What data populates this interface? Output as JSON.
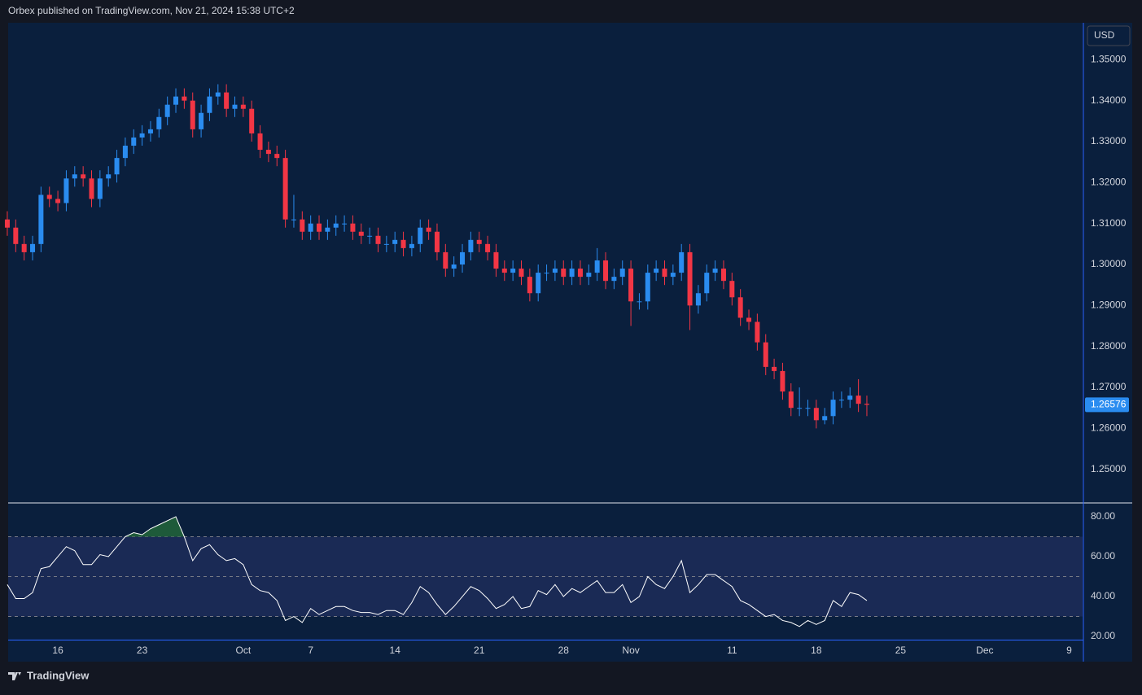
{
  "header": {
    "title": "Orbex published on TradingView.com, Nov 21, 2024 15:38 UTC+2"
  },
  "footer": {
    "brand": "TradingView"
  },
  "chart_data": [
    {
      "type": "candlestick",
      "currency": "USD",
      "up_color": "#2a8cf0",
      "down_color": "#f23645",
      "xlim": [
        -2.95,
        60.8
      ],
      "ylim": [
        1.242,
        1.359
      ],
      "xticks": [
        {
          "value": 0,
          "label": "16"
        },
        {
          "value": 5,
          "label": "23"
        },
        {
          "value": 11,
          "label": "Oct"
        },
        {
          "value": 15,
          "label": "7"
        },
        {
          "value": 20,
          "label": "14"
        },
        {
          "value": 25,
          "label": "21"
        },
        {
          "value": 30,
          "label": "28"
        },
        {
          "value": 34,
          "label": "Nov"
        },
        {
          "value": 40,
          "label": "11"
        },
        {
          "value": 45,
          "label": "18"
        },
        {
          "value": 50,
          "label": "25"
        },
        {
          "value": 55,
          "label": "Dec"
        },
        {
          "value": 60,
          "label": "9"
        }
      ],
      "yticks": [
        {
          "value": 1.35,
          "label": "1.35000"
        },
        {
          "value": 1.34,
          "label": "1.34000"
        },
        {
          "value": 1.33,
          "label": "1.33000"
        },
        {
          "value": 1.32,
          "label": "1.32000"
        },
        {
          "value": 1.31,
          "label": "1.31000"
        },
        {
          "value": 1.3,
          "label": "1.30000"
        },
        {
          "value": 1.29,
          "label": "1.29000"
        },
        {
          "value": 1.28,
          "label": "1.28000"
        },
        {
          "value": 1.27,
          "label": "1.27000"
        },
        {
          "value": 1.26,
          "label": "1.26000"
        },
        {
          "value": 1.25,
          "label": "1.25000"
        }
      ],
      "x": [
        -3,
        -2.5,
        -2,
        -1.5,
        -1,
        -0.5,
        0,
        0.5,
        1,
        1.5,
        2,
        2.5,
        3,
        3.5,
        4,
        4.5,
        5,
        5.5,
        6,
        6.5,
        7,
        7.5,
        8,
        8.5,
        9,
        9.5,
        10,
        10.5,
        11,
        11.5,
        12,
        12.5,
        13,
        13.5,
        14,
        14.5,
        15,
        15.5,
        16,
        16.5,
        17,
        17.5,
        18,
        18.5,
        19,
        19.5,
        20,
        20.5,
        21,
        21.5,
        22,
        22.5,
        23,
        23.5,
        24,
        24.5,
        25,
        25.5,
        26,
        26.5,
        27,
        27.5,
        28,
        28.5,
        29,
        29.5,
        30,
        30.5,
        31,
        31.5,
        32,
        32.5,
        33,
        33.5,
        34,
        34.5,
        35,
        35.5,
        36,
        36.5,
        37,
        37.5,
        38,
        38.5,
        39,
        39.5,
        40,
        40.5,
        41,
        41.5,
        42,
        42.5,
        43,
        43.5,
        44,
        44.5,
        45,
        45.5,
        46,
        46.5,
        47,
        47.5,
        48
      ],
      "open": [
        1.311,
        1.309,
        1.305,
        1.303,
        1.305,
        1.317,
        1.316,
        1.315,
        1.321,
        1.322,
        1.321,
        1.316,
        1.321,
        1.322,
        1.326,
        1.329,
        1.331,
        1.332,
        1.333,
        1.336,
        1.339,
        1.341,
        1.34,
        1.333,
        1.337,
        1.341,
        1.342,
        1.338,
        1.339,
        1.338,
        1.332,
        1.328,
        1.327,
        1.326,
        1.311,
        1.311,
        1.308,
        1.31,
        1.308,
        1.309,
        1.31,
        1.31,
        1.308,
        1.307,
        1.307,
        1.305,
        1.305,
        1.306,
        1.304,
        1.305,
        1.309,
        1.308,
        1.303,
        1.299,
        1.3,
        1.303,
        1.306,
        1.305,
        1.303,
        1.299,
        1.298,
        1.299,
        1.297,
        1.293,
        1.298,
        1.298,
        1.299,
        1.297,
        1.299,
        1.297,
        1.298,
        1.301,
        1.296,
        1.297,
        1.299,
        1.291,
        1.291,
        1.298,
        1.299,
        1.297,
        1.298,
        1.303,
        1.29,
        1.293,
        1.298,
        1.299,
        1.296,
        1.292,
        1.287,
        1.286,
        1.281,
        1.275,
        1.274,
        1.269,
        1.265,
        1.265,
        1.265,
        1.262,
        1.263,
        1.267,
        1.267,
        1.268,
        1.266
      ],
      "high": [
        1.313,
        1.311,
        1.307,
        1.307,
        1.319,
        1.319,
        1.318,
        1.323,
        1.324,
        1.324,
        1.323,
        1.323,
        1.324,
        1.328,
        1.331,
        1.333,
        1.334,
        1.335,
        1.338,
        1.341,
        1.343,
        1.343,
        1.342,
        1.339,
        1.343,
        1.344,
        1.344,
        1.341,
        1.341,
        1.34,
        1.334,
        1.33,
        1.329,
        1.328,
        1.317,
        1.313,
        1.312,
        1.312,
        1.311,
        1.312,
        1.312,
        1.312,
        1.31,
        1.309,
        1.309,
        1.307,
        1.308,
        1.308,
        1.307,
        1.311,
        1.311,
        1.31,
        1.305,
        1.302,
        1.305,
        1.308,
        1.308,
        1.307,
        1.305,
        1.301,
        1.301,
        1.301,
        1.299,
        1.3,
        1.3,
        1.301,
        1.301,
        1.301,
        1.301,
        1.3,
        1.304,
        1.303,
        1.299,
        1.301,
        1.301,
        1.293,
        1.3,
        1.301,
        1.301,
        1.3,
        1.305,
        1.305,
        1.295,
        1.3,
        1.301,
        1.301,
        1.298,
        1.294,
        1.289,
        1.288,
        1.283,
        1.277,
        1.276,
        1.271,
        1.27,
        1.267,
        1.267,
        1.265,
        1.269,
        1.269,
        1.27,
        1.272,
        1.268
      ],
      "low": [
        1.307,
        1.303,
        1.301,
        1.301,
        1.303,
        1.314,
        1.313,
        1.313,
        1.319,
        1.319,
        1.314,
        1.314,
        1.319,
        1.32,
        1.324,
        1.327,
        1.329,
        1.33,
        1.331,
        1.334,
        1.337,
        1.338,
        1.331,
        1.331,
        1.335,
        1.339,
        1.336,
        1.336,
        1.336,
        1.33,
        1.326,
        1.325,
        1.324,
        1.309,
        1.309,
        1.306,
        1.306,
        1.306,
        1.306,
        1.307,
        1.308,
        1.306,
        1.305,
        1.305,
        1.303,
        1.303,
        1.303,
        1.302,
        1.302,
        1.303,
        1.306,
        1.301,
        1.297,
        1.297,
        1.298,
        1.301,
        1.303,
        1.301,
        1.297,
        1.296,
        1.296,
        1.295,
        1.291,
        1.291,
        1.296,
        1.296,
        1.295,
        1.295,
        1.295,
        1.295,
        1.296,
        1.294,
        1.294,
        1.295,
        1.285,
        1.289,
        1.289,
        1.296,
        1.295,
        1.295,
        1.296,
        1.284,
        1.288,
        1.291,
        1.296,
        1.294,
        1.29,
        1.285,
        1.284,
        1.279,
        1.273,
        1.272,
        1.267,
        1.263,
        1.263,
        1.263,
        1.26,
        1.261,
        1.261,
        1.265,
        1.265,
        1.264,
        1.263
      ],
      "close": [
        1.309,
        1.305,
        1.303,
        1.305,
        1.317,
        1.316,
        1.315,
        1.321,
        1.322,
        1.321,
        1.316,
        1.321,
        1.322,
        1.326,
        1.329,
        1.331,
        1.332,
        1.333,
        1.336,
        1.339,
        1.341,
        1.34,
        1.333,
        1.337,
        1.341,
        1.342,
        1.338,
        1.339,
        1.338,
        1.332,
        1.328,
        1.327,
        1.326,
        1.311,
        1.311,
        1.308,
        1.31,
        1.308,
        1.309,
        1.31,
        1.31,
        1.308,
        1.307,
        1.307,
        1.305,
        1.305,
        1.306,
        1.304,
        1.305,
        1.309,
        1.308,
        1.303,
        1.299,
        1.3,
        1.303,
        1.306,
        1.305,
        1.303,
        1.299,
        1.298,
        1.299,
        1.297,
        1.293,
        1.298,
        1.298,
        1.299,
        1.297,
        1.299,
        1.297,
        1.298,
        1.301,
        1.296,
        1.297,
        1.299,
        1.291,
        1.291,
        1.298,
        1.299,
        1.297,
        1.298,
        1.303,
        1.29,
        1.293,
        1.298,
        1.299,
        1.296,
        1.292,
        1.287,
        1.286,
        1.281,
        1.275,
        1.274,
        1.269,
        1.265,
        1.265,
        1.265,
        1.262,
        1.263,
        1.267,
        1.267,
        1.268,
        1.266,
        1.26576
      ]
    },
    {
      "type": "line",
      "color": "#ffffff",
      "band_color": "#1a2a55",
      "overbought_color": "#1e5a3a",
      "ylim": [
        18.4,
        86.5
      ],
      "yticks": [
        {
          "value": 80,
          "label": "80.00"
        },
        {
          "value": 60,
          "label": "60.00"
        },
        {
          "value": 40,
          "label": "40.00"
        },
        {
          "value": 20,
          "label": "20.00"
        }
      ],
      "levels": [
        70,
        50,
        30
      ],
      "values": [
        46,
        39,
        39,
        42,
        54,
        55,
        60,
        65,
        63,
        56,
        56,
        61,
        60,
        65,
        70,
        72,
        71,
        74,
        76,
        78,
        80,
        70,
        58,
        64,
        66,
        61,
        58,
        59,
        56,
        46,
        43,
        42,
        38,
        28,
        30,
        27,
        34,
        31,
        33,
        35,
        35,
        33,
        32,
        32,
        31,
        33,
        33,
        31,
        37,
        45,
        42,
        36,
        31,
        35,
        40,
        45,
        43,
        39,
        34,
        36,
        40,
        34,
        35,
        43,
        41,
        46,
        40,
        44,
        42,
        45,
        48,
        42,
        42,
        46,
        37,
        40,
        50,
        46,
        44,
        50,
        58,
        42,
        46,
        51,
        51,
        48,
        45,
        38,
        36,
        33,
        30,
        31,
        28,
        27,
        25,
        28,
        26,
        28,
        38,
        35,
        42,
        41,
        38
      ]
    }
  ]
}
